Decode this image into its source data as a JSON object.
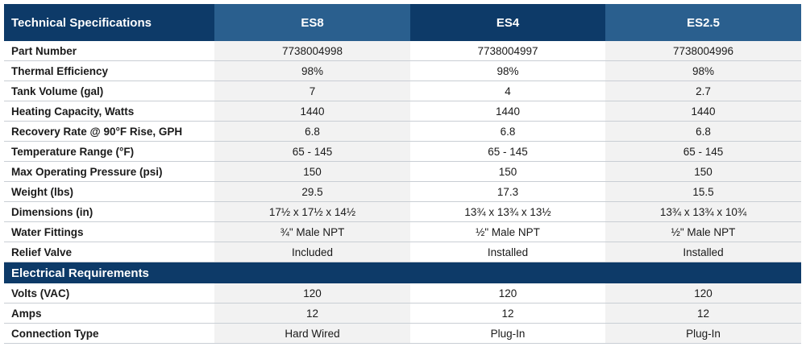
{
  "header": {
    "title": "Technical Specifications",
    "models": [
      "ES8",
      "ES4",
      "ES2.5"
    ]
  },
  "specs": [
    {
      "label": "Part Number",
      "values": [
        "7738004998",
        "7738004997",
        "7738004996"
      ]
    },
    {
      "label": "Thermal Efficiency",
      "values": [
        "98%",
        "98%",
        "98%"
      ]
    },
    {
      "label": "Tank Volume (gal)",
      "values": [
        "7",
        "4",
        "2.7"
      ]
    },
    {
      "label": "Heating Capacity, Watts",
      "values": [
        "1440",
        "1440",
        "1440"
      ]
    },
    {
      "label": "Recovery Rate @ 90°F Rise, GPH",
      "values": [
        "6.8",
        "6.8",
        "6.8"
      ]
    },
    {
      "label": "Temperature Range (°F)",
      "values": [
        "65 - 145",
        "65 - 145",
        "65 - 145"
      ]
    },
    {
      "label": "Max Operating Pressure (psi)",
      "values": [
        "150",
        "150",
        "150"
      ]
    },
    {
      "label": "Weight (lbs)",
      "values": [
        "29.5",
        "17.3",
        "15.5"
      ]
    },
    {
      "label": "Dimensions (in)",
      "values": [
        "17½ x 17½ x 14½",
        "13¾ x 13¾ x 13½",
        "13¾ x 13¾ x 10¾"
      ]
    },
    {
      "label": "Water Fittings",
      "values": [
        "¾\" Male NPT",
        "½\" Male NPT",
        "½\" Male NPT"
      ]
    },
    {
      "label": "Relief Valve",
      "values": [
        "Included",
        "Installed",
        "Installed"
      ]
    }
  ],
  "electrical": {
    "title": "Electrical Requirements",
    "rows": [
      {
        "label": "Volts (VAC)",
        "values": [
          "120",
          "120",
          "120"
        ]
      },
      {
        "label": "Amps",
        "values": [
          "12",
          "12",
          "12"
        ]
      },
      {
        "label": "Connection Type",
        "values": [
          "Hard Wired",
          "Plug-In",
          "Plug-In"
        ]
      }
    ]
  },
  "colors": {
    "header_dark": "#0d3a68",
    "header_light": "#2a5f8e",
    "row_shade": "#f2f2f2",
    "divider": "#c9ced4"
  }
}
